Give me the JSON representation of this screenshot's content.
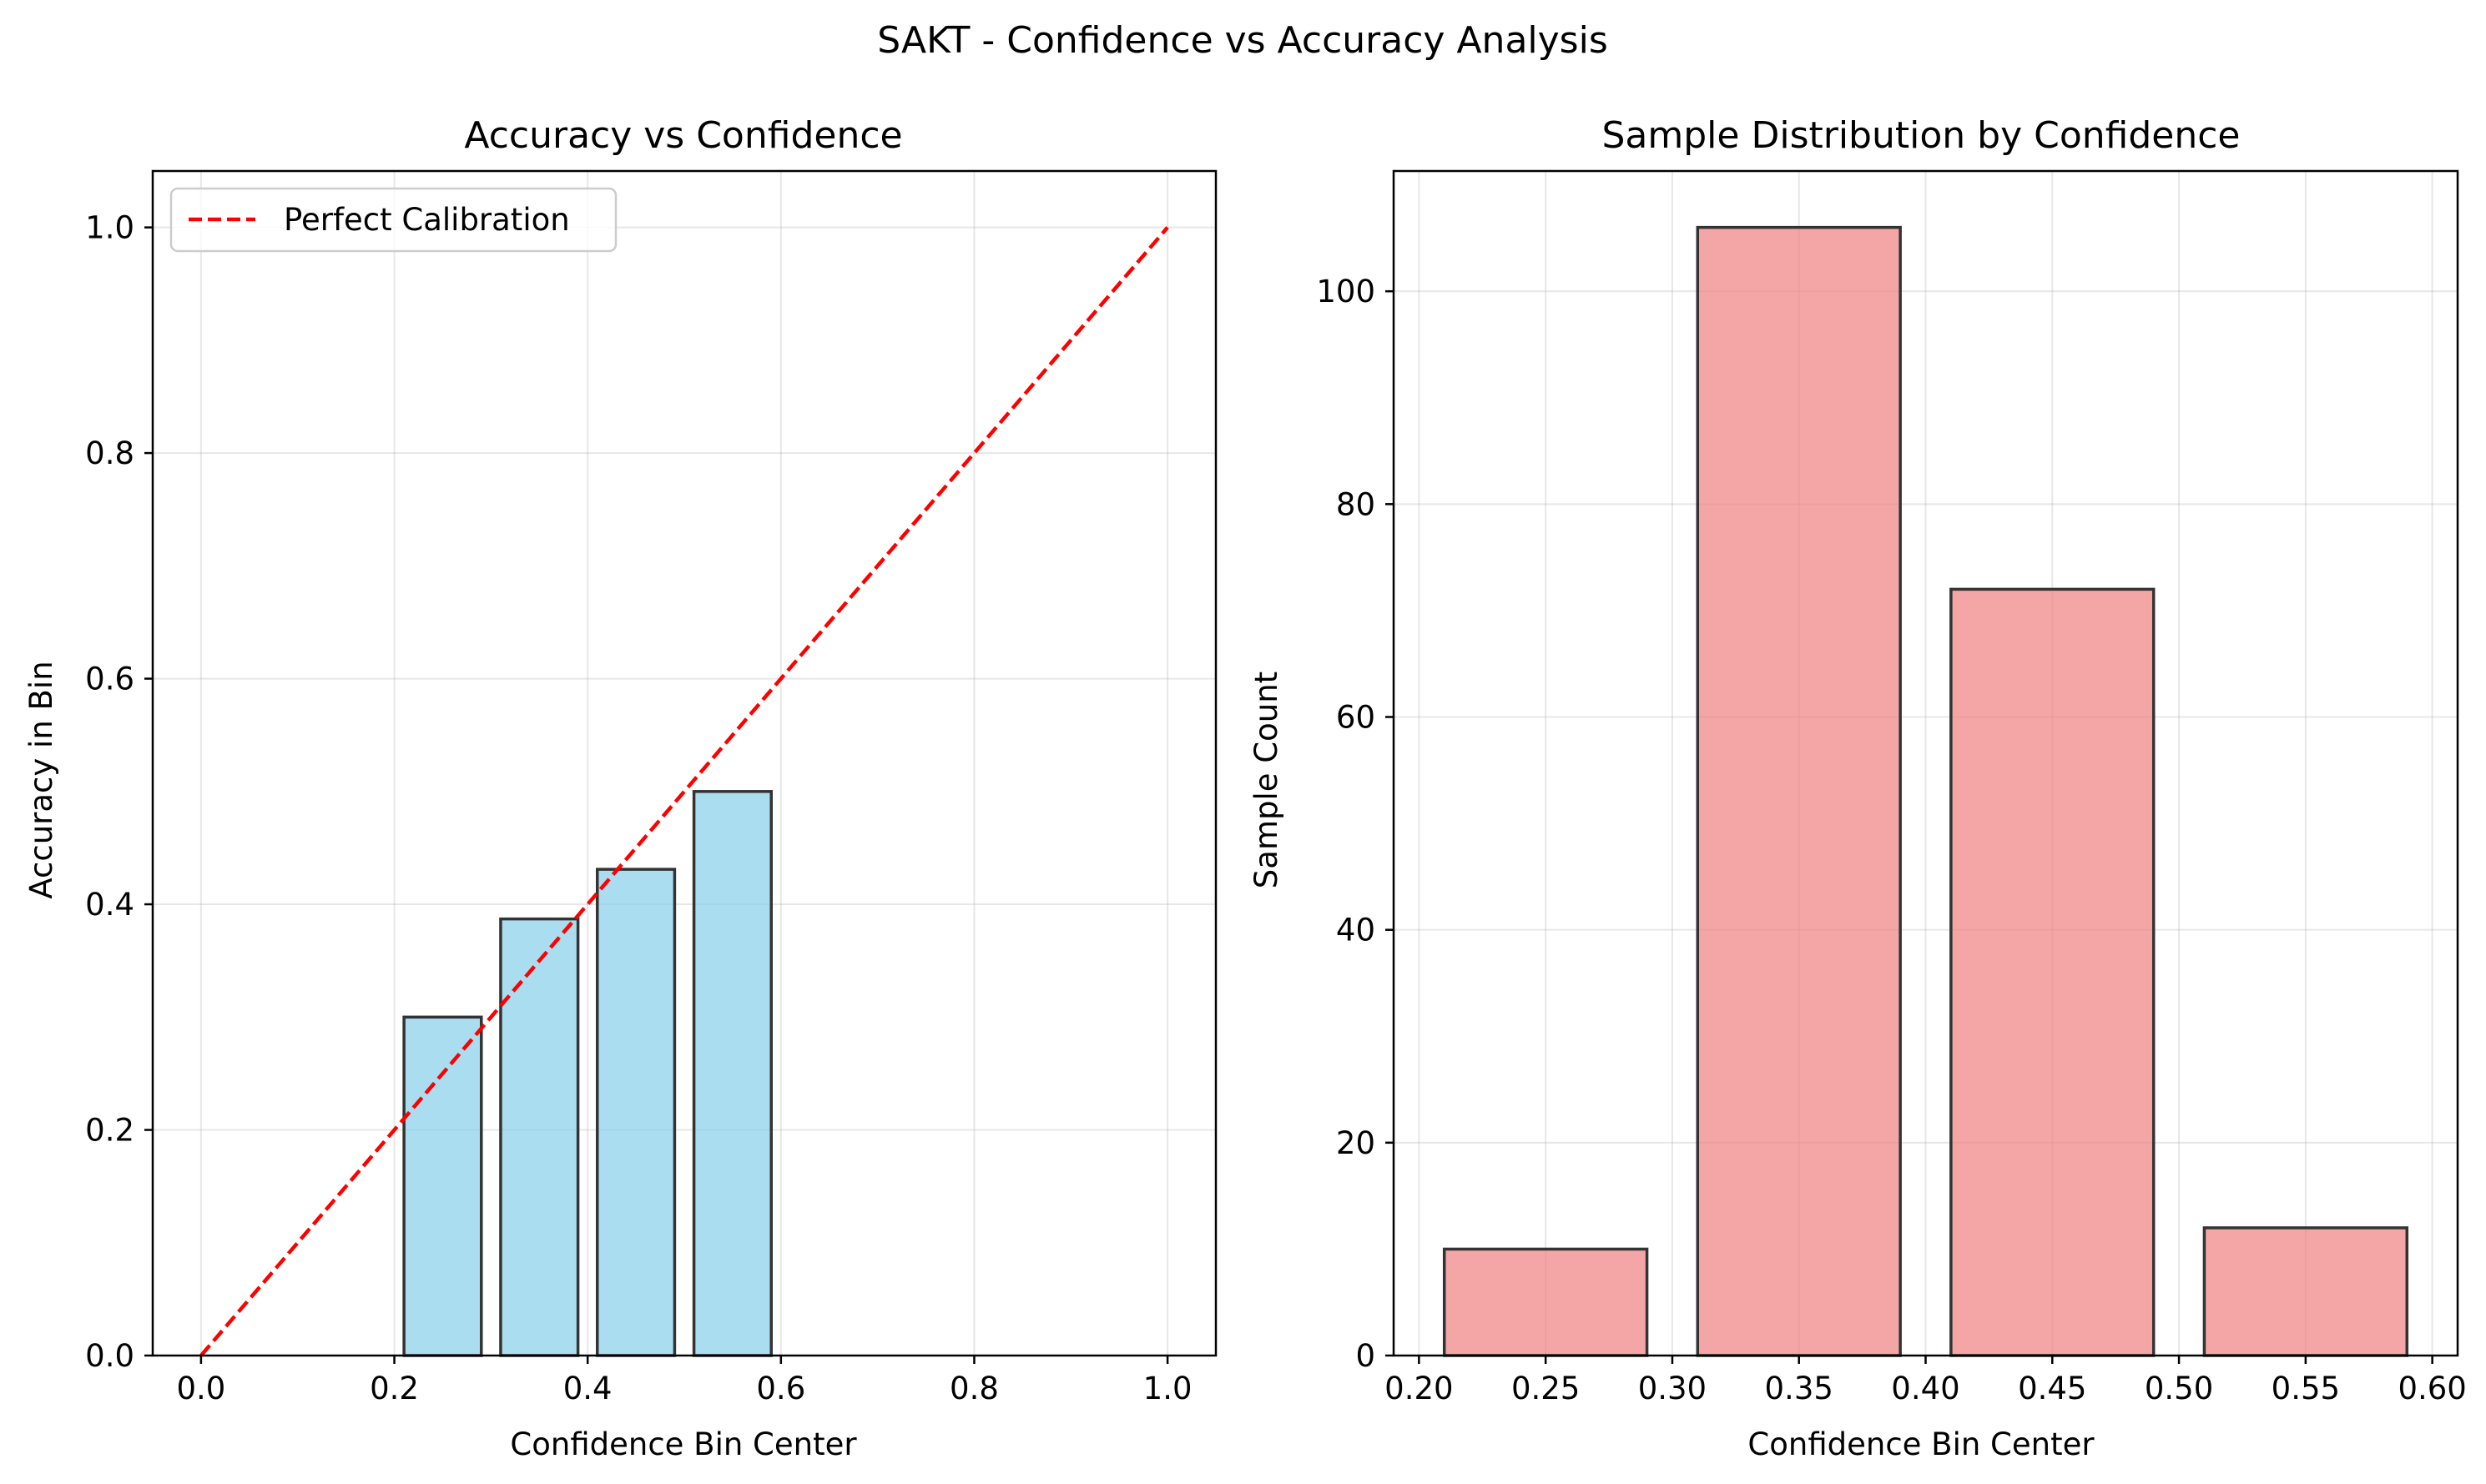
{
  "figure": {
    "suptitle": "SAKT - Confidence vs Accuracy Analysis"
  },
  "chart_data": [
    {
      "type": "bar",
      "title": "Accuracy vs Confidence",
      "xlabel": "Confidence Bin Center",
      "ylabel": "Accuracy in Bin",
      "x": [
        0.25,
        0.35,
        0.45,
        0.55
      ],
      "values": [
        0.3,
        0.387,
        0.431,
        0.5
      ],
      "bar_width": 0.08,
      "xlim": [
        -0.05,
        1.05
      ],
      "ylim": [
        0,
        1.05
      ],
      "xticks": [
        0.0,
        0.2,
        0.4,
        0.6,
        0.8,
        1.0
      ],
      "xtick_labels": [
        "0.0",
        "0.2",
        "0.4",
        "0.6",
        "0.8",
        "1.0"
      ],
      "yticks": [
        0.0,
        0.2,
        0.4,
        0.6,
        0.8,
        1.0
      ],
      "ytick_labels": [
        "0.0",
        "0.2",
        "0.4",
        "0.6",
        "0.8",
        "1.0"
      ],
      "bar_color": "#87CEEB",
      "bar_edge_color": "#333333",
      "reference_line": {
        "name": "Perfect Calibration",
        "x": [
          0,
          1
        ],
        "y": [
          0,
          1
        ],
        "color": "#ff0000",
        "style": "dashed"
      },
      "legend": {
        "position": "top-left",
        "entries": [
          "Perfect Calibration"
        ]
      },
      "grid": true
    },
    {
      "type": "bar",
      "title": "Sample Distribution by Confidence",
      "xlabel": "Confidence Bin Center",
      "ylabel": "Sample Count",
      "x": [
        0.25,
        0.35,
        0.45,
        0.55
      ],
      "values": [
        10,
        106,
        72,
        12
      ],
      "bar_width": 0.08,
      "xlim": [
        0.19,
        0.61
      ],
      "ylim": [
        0,
        111.3
      ],
      "xticks": [
        0.2,
        0.25,
        0.3,
        0.35,
        0.4,
        0.45,
        0.5,
        0.55,
        0.6
      ],
      "xtick_labels": [
        "0.20",
        "0.25",
        "0.30",
        "0.35",
        "0.40",
        "0.45",
        "0.50",
        "0.55",
        "0.60"
      ],
      "yticks": [
        0,
        20,
        40,
        60,
        80,
        100
      ],
      "ytick_labels": [
        "0",
        "20",
        "40",
        "60",
        "80",
        "100"
      ],
      "bar_color": "#F08080",
      "bar_edge_color": "#333333",
      "grid": true
    }
  ]
}
